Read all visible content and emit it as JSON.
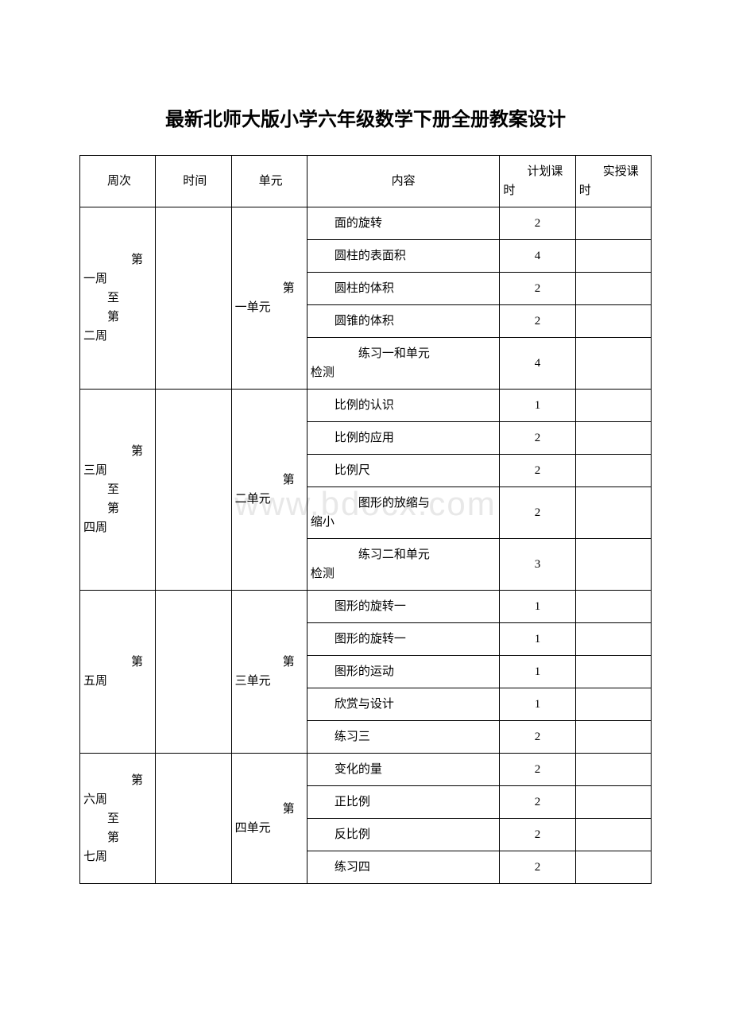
{
  "title": "最新北师大版小学六年级数学下册全册教案设计",
  "watermark": "www.bdocx.com",
  "headers": {
    "week": "周次",
    "time": "时间",
    "unit": "单元",
    "content": "内容",
    "planned": "计划课时",
    "actual": "实授课时"
  },
  "sections": [
    {
      "week": "第一周\n至\n第二周",
      "unit": "第一单元",
      "rows": [
        {
          "content": "面的旋转",
          "planned": "2"
        },
        {
          "content": "圆柱的表面积",
          "planned": "4"
        },
        {
          "content": "圆柱的体积",
          "planned": "2"
        },
        {
          "content": "圆锥的体积",
          "planned": "2"
        },
        {
          "content": "练习一和单元检测",
          "planned": "4",
          "wrap": true
        }
      ]
    },
    {
      "week": "第三周\n至\n第四周",
      "unit": "第二单元",
      "rows": [
        {
          "content": "比例的认识",
          "planned": "1"
        },
        {
          "content": "比例的应用",
          "planned": "2"
        },
        {
          "content": "比例尺",
          "planned": "2"
        },
        {
          "content": "图形的放缩与缩小",
          "planned": "2",
          "wrap": true
        },
        {
          "content": "练习二和单元检测",
          "planned": "3",
          "wrap": true
        }
      ]
    },
    {
      "week": "第五周",
      "unit": "第三单元",
      "rows": [
        {
          "content": "图形的旋转一",
          "planned": "1"
        },
        {
          "content": "图形的旋转一",
          "planned": "1"
        },
        {
          "content": "图形的运动",
          "planned": "1"
        },
        {
          "content": "欣赏与设计",
          "planned": "1"
        },
        {
          "content": "练习三",
          "planned": "2"
        }
      ]
    },
    {
      "week": "第六周\n至\n第七周",
      "unit": "第四单元",
      "rows": [
        {
          "content": "变化的量",
          "planned": "2"
        },
        {
          "content": "正比例",
          "planned": "2"
        },
        {
          "content": "反比例",
          "planned": "2"
        },
        {
          "content": "练习四",
          "planned": "2"
        }
      ]
    }
  ]
}
